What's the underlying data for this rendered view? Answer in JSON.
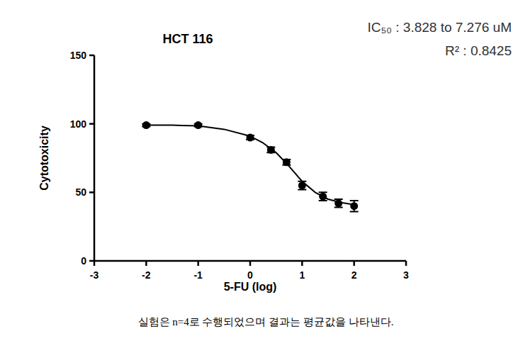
{
  "chart_data": {
    "type": "scatter",
    "title": "HCT 116",
    "x_label": "5-FU (log)",
    "y_label": "Cytotoxicity",
    "annotations": [
      "IC₅₀ : 3.828 to 7.276 uM",
      "R² : 0.8425"
    ],
    "caption": "실험은 n=4로 수행되었으며 결과는 평균값을 나타낸다.",
    "xlim": [
      -3,
      3
    ],
    "xticks": [
      -3,
      -2,
      -1,
      0,
      1,
      2,
      3
    ],
    "ylim": [
      0,
      150
    ],
    "yticks": [
      0,
      50,
      100,
      150
    ],
    "grid": false,
    "series": [
      {
        "type": "scatter",
        "marker": "circle",
        "color": "#000000",
        "x": [
          -2,
          -1,
          0,
          0.4,
          0.7,
          1,
          1.4,
          1.7,
          2
        ],
        "values": [
          99,
          99,
          90,
          81,
          72,
          55,
          47,
          42,
          40
        ],
        "errors": [
          1,
          1,
          1.5,
          2,
          2,
          3,
          3,
          3,
          4
        ]
      },
      {
        "type": "line",
        "line_style": "solid",
        "color": "#000000",
        "x": [
          -2,
          -1.5,
          -1,
          -0.5,
          0,
          0.25,
          0.5,
          0.75,
          1,
          1.25,
          1.5,
          1.75,
          2
        ],
        "values": [
          99,
          99,
          98.5,
          96,
          91,
          86,
          79,
          69,
          58,
          50,
          45,
          42.5,
          41
        ]
      }
    ]
  }
}
